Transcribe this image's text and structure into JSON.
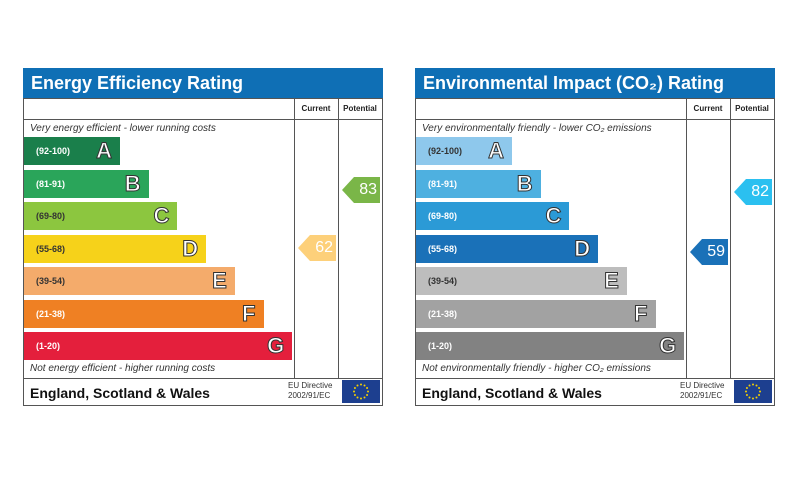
{
  "chart_data": [
    {
      "type": "bar",
      "title": "Energy Efficiency Rating",
      "columns": [
        "Current",
        "Potential"
      ],
      "top_note": "Very energy efficient - lower running costs",
      "bottom_note": "Not energy efficient - higher running costs",
      "bands": [
        {
          "range": "(92-100)",
          "letter": "A",
          "color": "#1a7f4b"
        },
        {
          "range": "(81-91)",
          "letter": "B",
          "color": "#2aa55a"
        },
        {
          "range": "(69-80)",
          "letter": "C",
          "color": "#8cc63f"
        },
        {
          "range": "(55-68)",
          "letter": "D",
          "color": "#f6d21a"
        },
        {
          "range": "(39-54)",
          "letter": "E",
          "color": "#f4ab6b"
        },
        {
          "range": "(21-38)",
          "letter": "F",
          "color": "#ef8023"
        },
        {
          "range": "(1-20)",
          "letter": "G",
          "color": "#e41f3c"
        }
      ],
      "current": {
        "value": 62,
        "color": "#fdd07a"
      },
      "potential": {
        "value": 83,
        "color": "#7ab648"
      },
      "footer": "England, Scotland & Wales",
      "directive": [
        "EU Directive",
        "2002/91/EC"
      ]
    },
    {
      "type": "bar",
      "title": "Environmental Impact (CO₂) Rating",
      "columns": [
        "Current",
        "Potential"
      ],
      "top_note": "Very environmentally friendly - lower CO₂ emissions",
      "bottom_note": "Not environmentally friendly - higher CO₂ emissions",
      "bands": [
        {
          "range": "(92-100)",
          "letter": "A",
          "color": "#8ec8ec"
        },
        {
          "range": "(81-91)",
          "letter": "B",
          "color": "#4eb0e0"
        },
        {
          "range": "(69-80)",
          "letter": "C",
          "color": "#2b9ad6"
        },
        {
          "range": "(55-68)",
          "letter": "D",
          "color": "#1a71b8"
        },
        {
          "range": "(39-54)",
          "letter": "E",
          "color": "#bdbdbd"
        },
        {
          "range": "(21-38)",
          "letter": "F",
          "color": "#a2a2a2"
        },
        {
          "range": "(1-20)",
          "letter": "G",
          "color": "#828282"
        }
      ],
      "current": {
        "value": 59,
        "color": "#1a71b8"
      },
      "potential": {
        "value": 82,
        "color": "#2bc0f0"
      },
      "footer": "England, Scotland & Wales",
      "directive": [
        "EU Directive",
        "2002/91/EC"
      ]
    }
  ]
}
